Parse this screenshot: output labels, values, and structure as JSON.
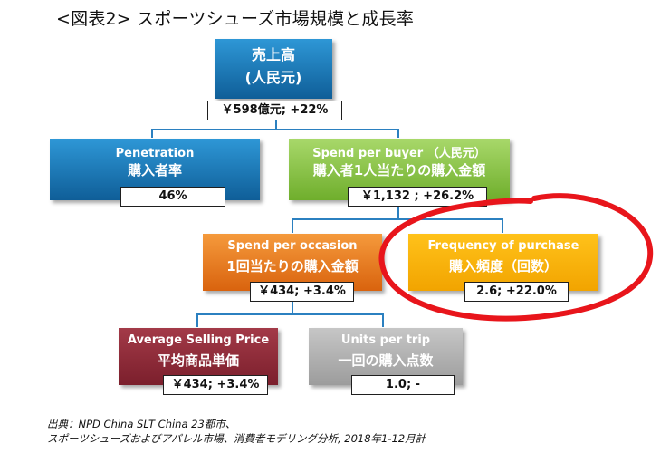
{
  "title": "<図表2> スポーツシューズ市場規模と成長率",
  "nodes": {
    "sales": {
      "jp": "売上高",
      "unit": "(人民元)",
      "value": "￥598億元; +22%"
    },
    "penetration": {
      "en": "Penetration",
      "jp": "購入者率",
      "value": "46%"
    },
    "spend_per_buyer": {
      "en": "Spend per buyer （人民元）",
      "jp": "購入者1人当たりの購入金額",
      "value": "￥1,132 ; +26.2%"
    },
    "spend_per_occasion": {
      "en": "Spend per occasion",
      "jp": "1回当たりの購入金額",
      "value": "￥434; +3.4%"
    },
    "frequency": {
      "en": "Frequency of purchase",
      "jp": "購入頻度（回数）",
      "value": "2.6; +22.0%"
    },
    "avg_price": {
      "en": "Average Selling Price",
      "jp": "平均商品単価",
      "value": "￥434; +3.4%"
    },
    "units": {
      "en": "Units per trip",
      "jp": "一回の購入点数",
      "value": "1.0; -"
    }
  },
  "source": {
    "line1": "出典：NPD China SLT China 23都市、",
    "line2": "スポーツシューズおよびアパレル市場、消費者モデリング分析, 2018年1-12月計"
  },
  "colors": {
    "blue": "#1a74b6",
    "green": "#8dc63f",
    "orange": "#f07c1e",
    "yellow": "#ffb400",
    "maroon": "#8e2a38",
    "gray": "#b3b3b3",
    "connector": "#2b80c0",
    "highlight": "#e8151b"
  }
}
